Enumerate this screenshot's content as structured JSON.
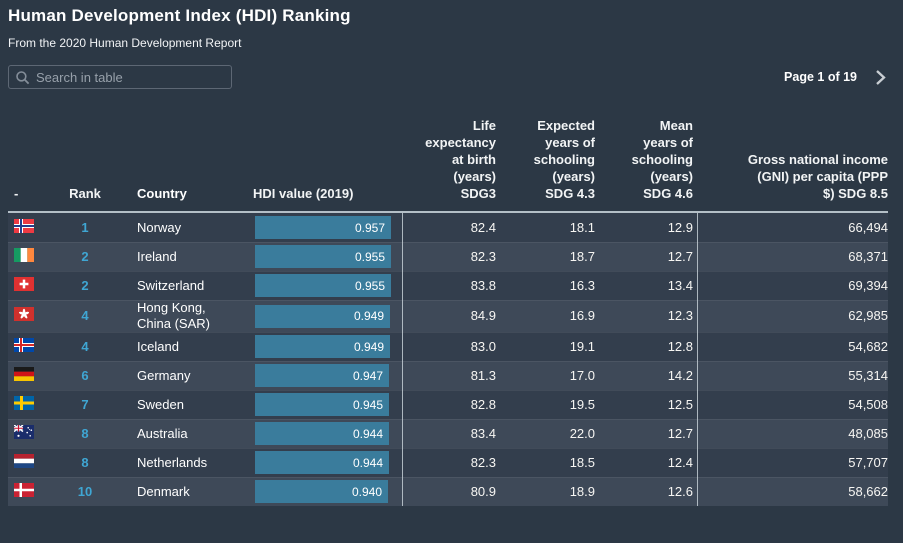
{
  "header": {
    "title": "Human Development Index (HDI) Ranking",
    "subtitle": "From the 2020 Human Development Report"
  },
  "toolbar": {
    "search_placeholder": "Search in table",
    "pagination": "Page 1 of 19",
    "next_icon": "chevron-right"
  },
  "colors": {
    "bg": "#2c3845",
    "row_dark": "#333e4d",
    "row_light": "#3e4958",
    "bar": "#3a7c9c",
    "rank": "#3fa6d3",
    "divider": "#c3ccd3",
    "header_line": "#b4bfc7"
  },
  "table": {
    "columns": [
      {
        "key": "flag",
        "label": "-"
      },
      {
        "key": "rank",
        "label": "Rank"
      },
      {
        "key": "country",
        "label": "Country"
      },
      {
        "key": "hdi",
        "label": "HDI value (2019)"
      },
      {
        "key": "life",
        "label": "Life\nexpectancy\nat birth\n(years)\nSDG3"
      },
      {
        "key": "expected",
        "label": "Expected\nyears of\nschooling\n(years)\nSDG 4.3"
      },
      {
        "key": "mean",
        "label": "Mean\nyears of\nschooling\n(years)\nSDG 4.6"
      },
      {
        "key": "gni",
        "label": "Gross national income\n(GNI) per capita (PPP\n$) SDG 8.5"
      }
    ],
    "rows": [
      {
        "flag": "norway",
        "rank": "1",
        "country": "Norway",
        "hdi": "0.957",
        "life": "82.4",
        "expected": "18.1",
        "mean": "12.9",
        "gni": "66,494"
      },
      {
        "flag": "ireland",
        "rank": "2",
        "country": "Ireland",
        "hdi": "0.955",
        "life": "82.3",
        "expected": "18.7",
        "mean": "12.7",
        "gni": "68,371"
      },
      {
        "flag": "switzerland",
        "rank": "2",
        "country": "Switzerland",
        "hdi": "0.955",
        "life": "83.8",
        "expected": "16.3",
        "mean": "13.4",
        "gni": "69,394"
      },
      {
        "flag": "hongkong",
        "rank": "4",
        "country": "Hong Kong, China (SAR)",
        "hdi": "0.949",
        "life": "84.9",
        "expected": "16.9",
        "mean": "12.3",
        "gni": "62,985"
      },
      {
        "flag": "iceland",
        "rank": "4",
        "country": "Iceland",
        "hdi": "0.949",
        "life": "83.0",
        "expected": "19.1",
        "mean": "12.8",
        "gni": "54,682"
      },
      {
        "flag": "germany",
        "rank": "6",
        "country": "Germany",
        "hdi": "0.947",
        "life": "81.3",
        "expected": "17.0",
        "mean": "14.2",
        "gni": "55,314"
      },
      {
        "flag": "sweden",
        "rank": "7",
        "country": "Sweden",
        "hdi": "0.945",
        "life": "82.8",
        "expected": "19.5",
        "mean": "12.5",
        "gni": "54,508"
      },
      {
        "flag": "australia",
        "rank": "8",
        "country": "Australia",
        "hdi": "0.944",
        "life": "83.4",
        "expected": "22.0",
        "mean": "12.7",
        "gni": "48,085"
      },
      {
        "flag": "netherlands",
        "rank": "8",
        "country": "Netherlands",
        "hdi": "0.944",
        "life": "82.3",
        "expected": "18.5",
        "mean": "12.4",
        "gni": "57,707"
      },
      {
        "flag": "denmark",
        "rank": "10",
        "country": "Denmark",
        "hdi": "0.940",
        "life": "80.9",
        "expected": "18.9",
        "mean": "12.6",
        "gni": "58,662"
      }
    ]
  }
}
